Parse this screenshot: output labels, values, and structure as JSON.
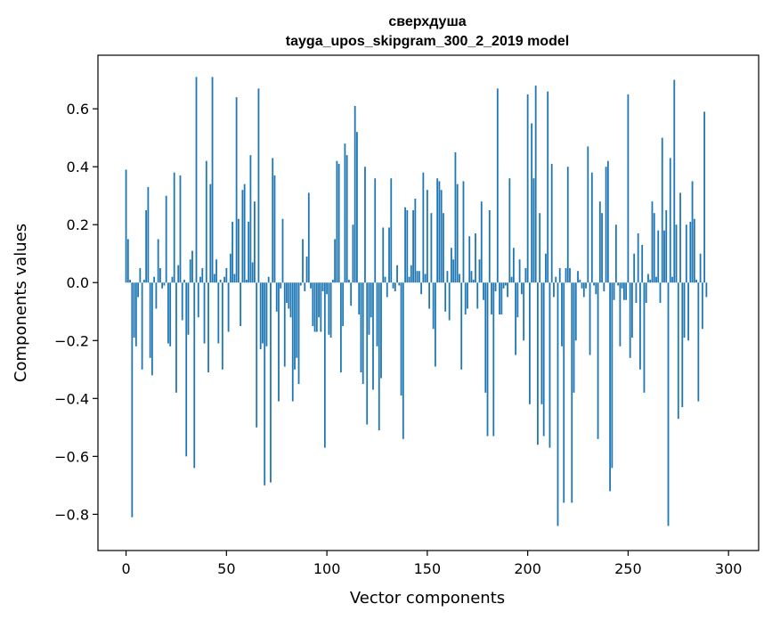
{
  "chart_data": {
    "type": "bar",
    "title": "сверхдуша",
    "subtitle": "tayga_upos_skipgram_300_2_2019 model",
    "xlabel": "Vector components",
    "ylabel": "Components values",
    "xlim": [
      -14,
      315
    ],
    "ylim": [
      -0.925,
      0.785
    ],
    "xticks": [
      0,
      50,
      100,
      150,
      200,
      250,
      300
    ],
    "yticks": [
      -0.8,
      -0.6,
      -0.4,
      -0.2,
      0.0,
      0.2,
      0.4,
      0.6
    ],
    "ytick_labels": [
      "−0.8",
      "−0.6",
      "−0.4",
      "−0.2",
      "0.0",
      "0.2",
      "0.4",
      "0.6"
    ],
    "bar_color": "#1f77b4",
    "x_start": 0,
    "values": [
      0.39,
      0.15,
      0.01,
      -0.81,
      -0.19,
      -0.22,
      -0.05,
      0.05,
      -0.3,
      0.01,
      0.25,
      0.33,
      -0.26,
      -0.32,
      0.02,
      -0.09,
      0.15,
      0.05,
      -0.02,
      -0.01,
      0.3,
      -0.21,
      -0.22,
      0.02,
      0.38,
      -0.38,
      0.06,
      0.37,
      -0.13,
      0.01,
      -0.6,
      -0.18,
      0.08,
      0.11,
      -0.64,
      0.71,
      -0.12,
      0.02,
      0.05,
      -0.21,
      0.42,
      -0.31,
      0.34,
      0.71,
      0.03,
      0.08,
      -0.21,
      0.01,
      -0.3,
      0.02,
      0.05,
      -0.17,
      0.1,
      0.21,
      0.03,
      0.64,
      0.22,
      -0.15,
      0.32,
      0.34,
      0.01,
      0.21,
      0.44,
      0.07,
      0.28,
      -0.5,
      0.67,
      -0.23,
      -0.21,
      -0.7,
      -0.22,
      0.02,
      -0.69,
      0.43,
      0.37,
      -0.1,
      -0.41,
      -0.02,
      0.22,
      -0.29,
      -0.07,
      -0.09,
      -0.12,
      -0.41,
      -0.3,
      -0.26,
      -0.35,
      -0.01,
      0.15,
      -0.03,
      0.09,
      0.31,
      -0.02,
      -0.15,
      -0.17,
      -0.17,
      -0.12,
      -0.17,
      -0.03,
      -0.57,
      -0.04,
      -0.18,
      -0.19,
      0.01,
      0.15,
      0.42,
      0.41,
      -0.31,
      -0.15,
      0.48,
      0.44,
      0.01,
      -0.08,
      0.2,
      0.61,
      0.52,
      -0.11,
      -0.31,
      -0.35,
      0.4,
      -0.49,
      -0.18,
      -0.12,
      -0.37,
      0.36,
      -0.22,
      -0.51,
      -0.33,
      0.19,
      0.02,
      -0.05,
      0.19,
      0.36,
      -0.02,
      -0.03,
      0.06,
      -0.01,
      -0.39,
      -0.54,
      0.26,
      0.25,
      0.02,
      0.06,
      0.25,
      0.29,
      0.04,
      0.04,
      -0.04,
      0.38,
      0.03,
      0.32,
      -0.09,
      0.24,
      -0.16,
      -0.29,
      0.36,
      0.35,
      0.32,
      0.24,
      -0.1,
      0.04,
      -0.13,
      0.12,
      0.08,
      0.45,
      0.34,
      0.03,
      -0.3,
      0.35,
      -0.11,
      -0.09,
      0.16,
      0.04,
      0.01,
      0.17,
      -0.09,
      0.08,
      0.28,
      -0.06,
      -0.38,
      -0.53,
      0.25,
      -0.11,
      -0.53,
      -0.03,
      0.67,
      -0.11,
      -0.11,
      -0.02,
      -0.01,
      -0.05,
      0.36,
      0.02,
      0.12,
      -0.25,
      -0.12,
      0.08,
      -0.04,
      -0.2,
      0.05,
      0.65,
      -0.42,
      0.55,
      0.36,
      0.68,
      -0.56,
      0.24,
      -0.42,
      -0.53,
      0.1,
      0.66,
      -0.57,
      0.41,
      -0.05,
      0.02,
      -0.84,
      0.05,
      -0.22,
      -0.76,
      0.05,
      0.4,
      0.05,
      -0.76,
      -0.38,
      -0.2,
      0.04,
      0.01,
      -0.02,
      -0.05,
      -0.02,
      0.47,
      -0.25,
      0.38,
      -0.01,
      -0.04,
      -0.54,
      0.28,
      0.24,
      -0.03,
      0.4,
      0.42,
      -0.72,
      -0.64,
      -0.06,
      0.2,
      -0.01,
      -0.22,
      -0.02,
      -0.06,
      -0.06,
      0.65,
      -0.26,
      -0.19,
      0.1,
      -0.07,
      0.17,
      -0.3,
      0.13,
      -0.38,
      -0.07,
      0.03,
      0.01,
      0.28,
      0.24,
      0.02,
      0.18,
      -0.07,
      0.5,
      0.18,
      0.25,
      -0.84,
      0.43,
      0.02,
      0.7,
      0.2,
      -0.47,
      0.31,
      -0.43,
      -0.19,
      0.2,
      -0.2,
      0.21,
      0.35,
      0.22,
      0.01,
      -0.41,
      0.1,
      -0.16,
      0.59,
      -0.05
    ]
  }
}
